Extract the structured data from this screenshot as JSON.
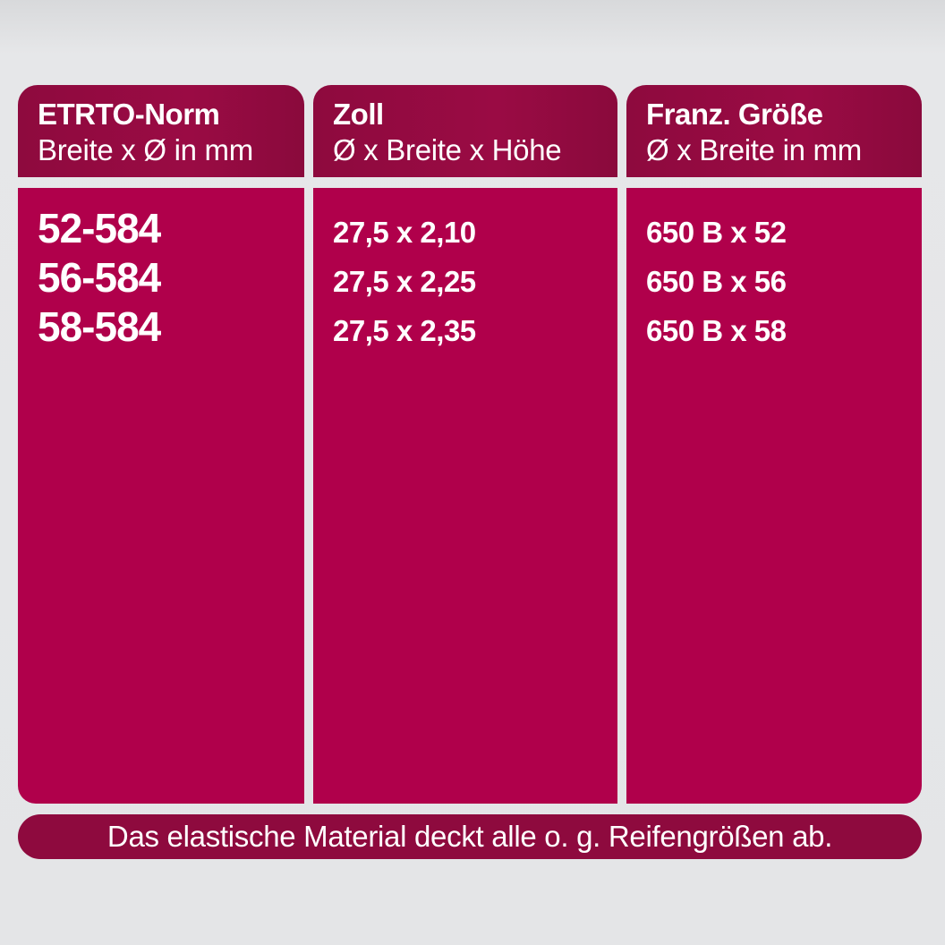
{
  "colors": {
    "header": "#8e0a3e",
    "body": "#b0004b",
    "background": "#e4e5e7",
    "text": "#ffffff"
  },
  "columns": [
    {
      "title": "ETRTO-Norm",
      "subtitle": "Breite x Ø in mm",
      "values": [
        "52-584",
        "56-584",
        "58-584"
      ]
    },
    {
      "title": "Zoll",
      "subtitle": "Ø x Breite x Höhe",
      "values": [
        "27,5 x 2,10",
        "27,5 x 2,25",
        "27,5 x 2,35"
      ]
    },
    {
      "title": "Franz. Größe",
      "subtitle": "Ø x Breite in mm",
      "values": [
        "650 B x 52",
        "650 B x 56",
        "650 B x 58"
      ]
    }
  ],
  "footer": "Das elastische Material deckt alle o. g. Reifengrößen ab."
}
